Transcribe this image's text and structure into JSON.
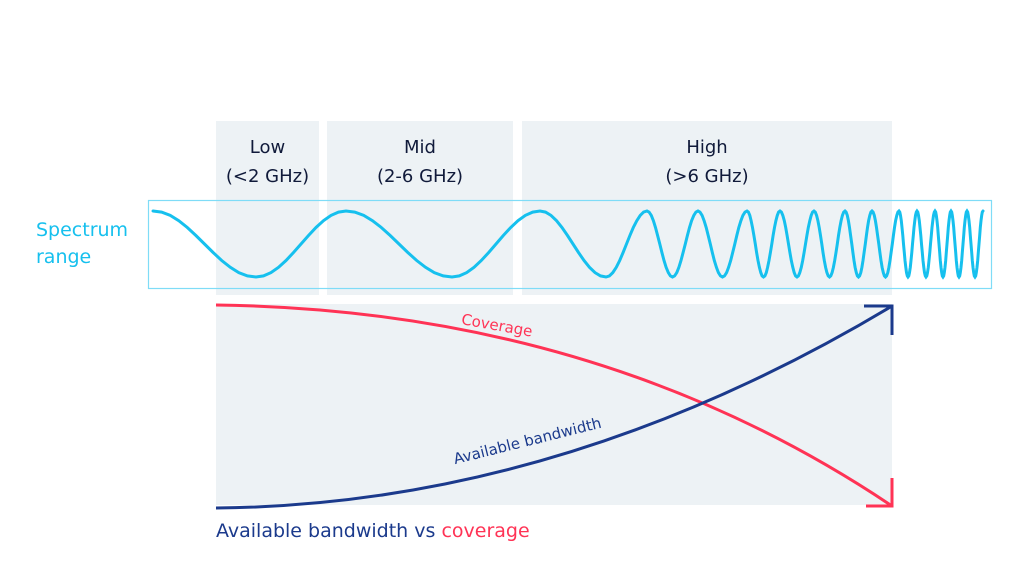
{
  "bands": [
    {
      "name": "Low",
      "range": "(<2 GHz)"
    },
    {
      "name": "Mid",
      "range": "(2-6 GHz)"
    },
    {
      "name": "High",
      "range": "(>6 GHz)"
    }
  ],
  "spectrum_label": {
    "line1": "Spectrum",
    "line2": "range"
  },
  "curves": {
    "coverage": "Coverage",
    "bandwidth": "Available bandwidth"
  },
  "caption": {
    "part1": "Available bandwidth",
    "part2": " vs ",
    "part3": "coverage"
  },
  "colors": {
    "wave": "#16c0ee",
    "coverage": "#ff3355",
    "bandwidth": "#1b3a8c",
    "band_fill": "#edf2f5",
    "text": "#101a3a"
  }
}
